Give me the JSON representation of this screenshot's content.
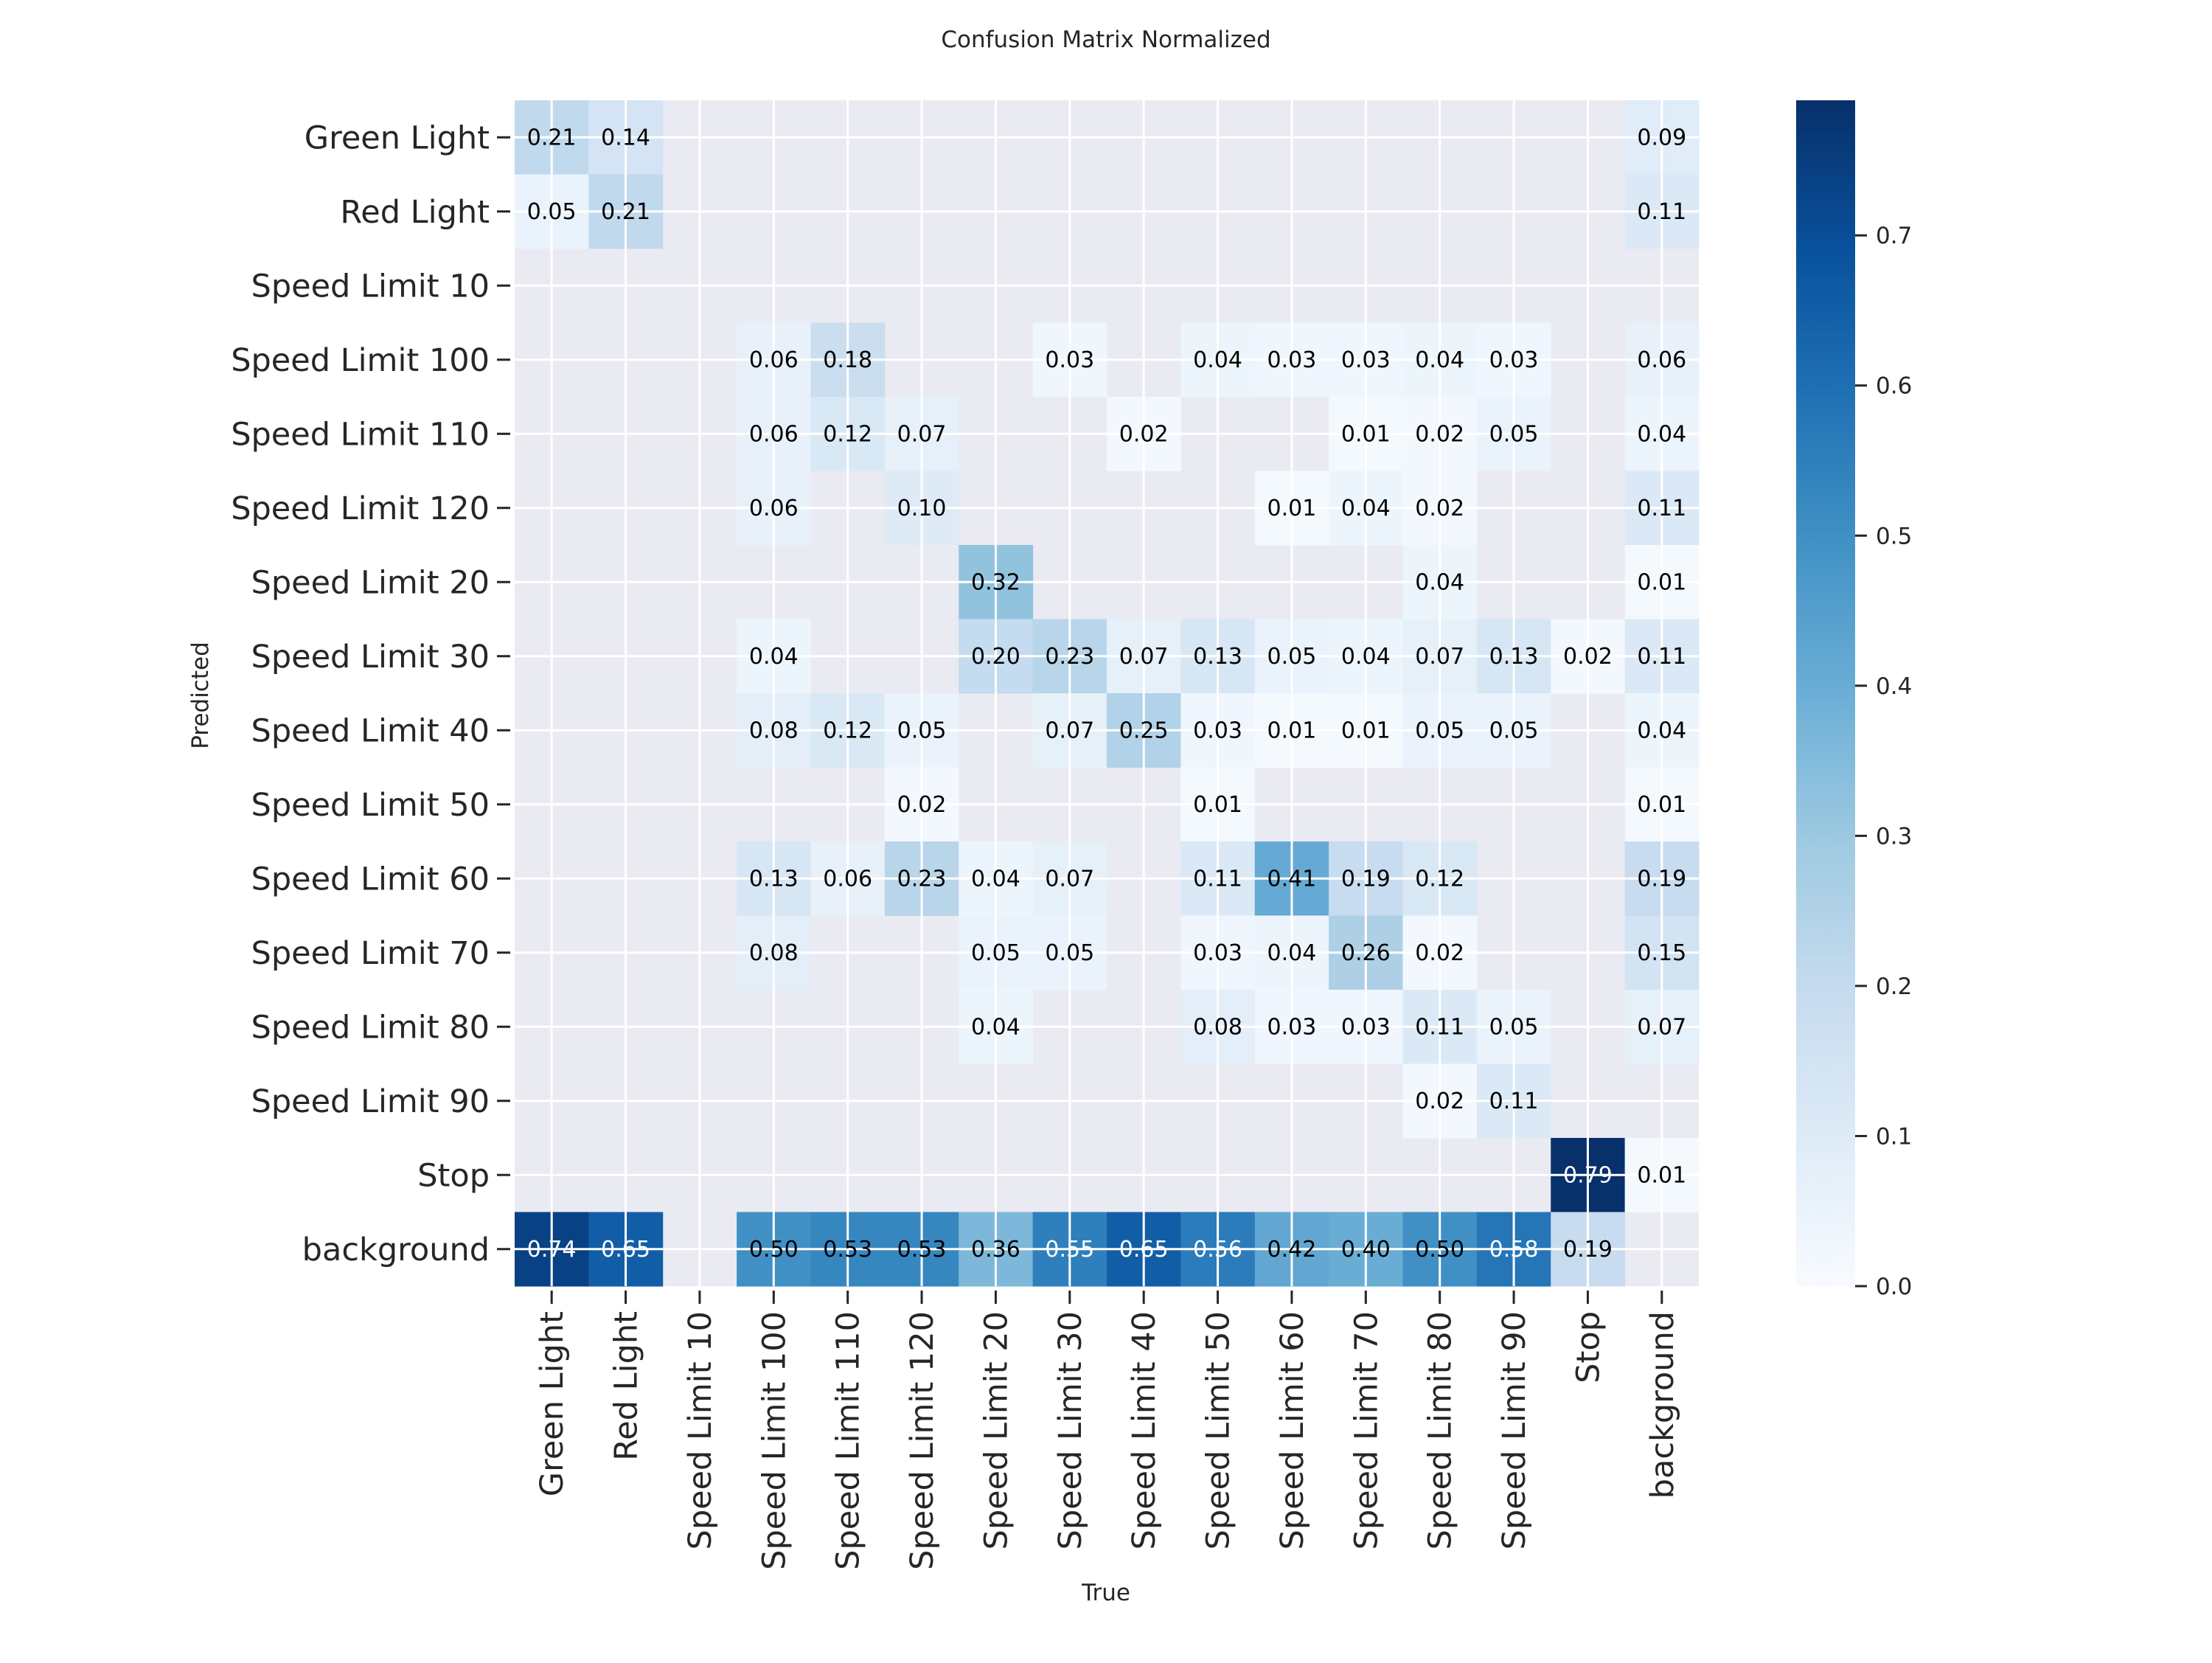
{
  "chart_data": {
    "type": "heatmap",
    "title": "Confusion Matrix Normalized",
    "xlabel": "True",
    "ylabel": "Predicted",
    "x_categories": [
      "Green Light",
      "Red Light",
      "Speed Limit 10",
      "Speed Limit 100",
      "Speed Limit 110",
      "Speed Limit 120",
      "Speed Limit 20",
      "Speed Limit 30",
      "Speed Limit 40",
      "Speed Limit 50",
      "Speed Limit 60",
      "Speed Limit 70",
      "Speed Limit 80",
      "Speed Limit 90",
      "Stop",
      "background"
    ],
    "y_categories": [
      "Green Light",
      "Red Light",
      "Speed Limit 10",
      "Speed Limit 100",
      "Speed Limit 110",
      "Speed Limit 120",
      "Speed Limit 20",
      "Speed Limit 30",
      "Speed Limit 40",
      "Speed Limit 50",
      "Speed Limit 60",
      "Speed Limit 70",
      "Speed Limit 80",
      "Speed Limit 90",
      "Stop",
      "background"
    ],
    "values": [
      [
        0.21,
        0.14,
        null,
        null,
        null,
        null,
        null,
        null,
        null,
        null,
        null,
        null,
        null,
        null,
        null,
        0.09
      ],
      [
        0.05,
        0.21,
        null,
        null,
        null,
        null,
        null,
        null,
        null,
        null,
        null,
        null,
        null,
        null,
        null,
        0.11
      ],
      [
        null,
        null,
        null,
        null,
        null,
        null,
        null,
        null,
        null,
        null,
        null,
        null,
        null,
        null,
        null,
        null
      ],
      [
        null,
        null,
        null,
        0.06,
        0.18,
        null,
        null,
        0.03,
        null,
        0.04,
        0.03,
        0.03,
        0.04,
        0.03,
        null,
        0.06
      ],
      [
        null,
        null,
        null,
        0.06,
        0.12,
        0.07,
        null,
        null,
        0.02,
        null,
        null,
        0.01,
        0.02,
        0.05,
        null,
        0.04
      ],
      [
        null,
        null,
        null,
        0.06,
        null,
        0.1,
        null,
        null,
        null,
        null,
        0.01,
        0.04,
        0.02,
        null,
        null,
        0.11
      ],
      [
        null,
        null,
        null,
        null,
        null,
        null,
        0.32,
        null,
        null,
        null,
        null,
        null,
        0.04,
        null,
        null,
        0.01
      ],
      [
        null,
        null,
        null,
        0.04,
        null,
        null,
        0.2,
        0.23,
        0.07,
        0.13,
        0.05,
        0.04,
        0.07,
        0.13,
        0.02,
        0.11
      ],
      [
        null,
        null,
        null,
        0.08,
        0.12,
        0.05,
        null,
        0.07,
        0.25,
        0.03,
        0.01,
        0.01,
        0.05,
        0.05,
        null,
        0.04
      ],
      [
        null,
        null,
        null,
        null,
        null,
        0.02,
        null,
        null,
        null,
        0.01,
        null,
        null,
        null,
        null,
        null,
        0.01
      ],
      [
        null,
        null,
        null,
        0.13,
        0.06,
        0.23,
        0.04,
        0.07,
        null,
        0.11,
        0.41,
        0.19,
        0.12,
        null,
        null,
        0.19
      ],
      [
        null,
        null,
        null,
        0.08,
        null,
        null,
        0.05,
        0.05,
        null,
        0.03,
        0.04,
        0.26,
        0.02,
        null,
        null,
        0.15
      ],
      [
        null,
        null,
        null,
        null,
        null,
        null,
        0.04,
        null,
        null,
        0.08,
        0.03,
        0.03,
        0.11,
        0.05,
        null,
        0.07
      ],
      [
        null,
        null,
        null,
        null,
        null,
        null,
        null,
        null,
        null,
        null,
        null,
        null,
        0.02,
        0.11,
        null,
        null
      ],
      [
        null,
        null,
        null,
        null,
        null,
        null,
        null,
        null,
        null,
        null,
        null,
        null,
        null,
        null,
        0.79,
        0.01
      ],
      [
        0.74,
        0.65,
        null,
        0.5,
        0.53,
        0.53,
        0.36,
        0.55,
        0.65,
        0.56,
        0.42,
        0.4,
        0.5,
        0.58,
        0.19,
        null
      ]
    ],
    "colorbar": {
      "min": 0.0,
      "max": 0.79,
      "ticks": [
        "0.0",
        "0.1",
        "0.2",
        "0.3",
        "0.4",
        "0.5",
        "0.6",
        "0.7"
      ]
    },
    "colors": {
      "empty_cell": "#eaeaf2",
      "grid": "#ffffff",
      "cmap": "Blues"
    }
  }
}
